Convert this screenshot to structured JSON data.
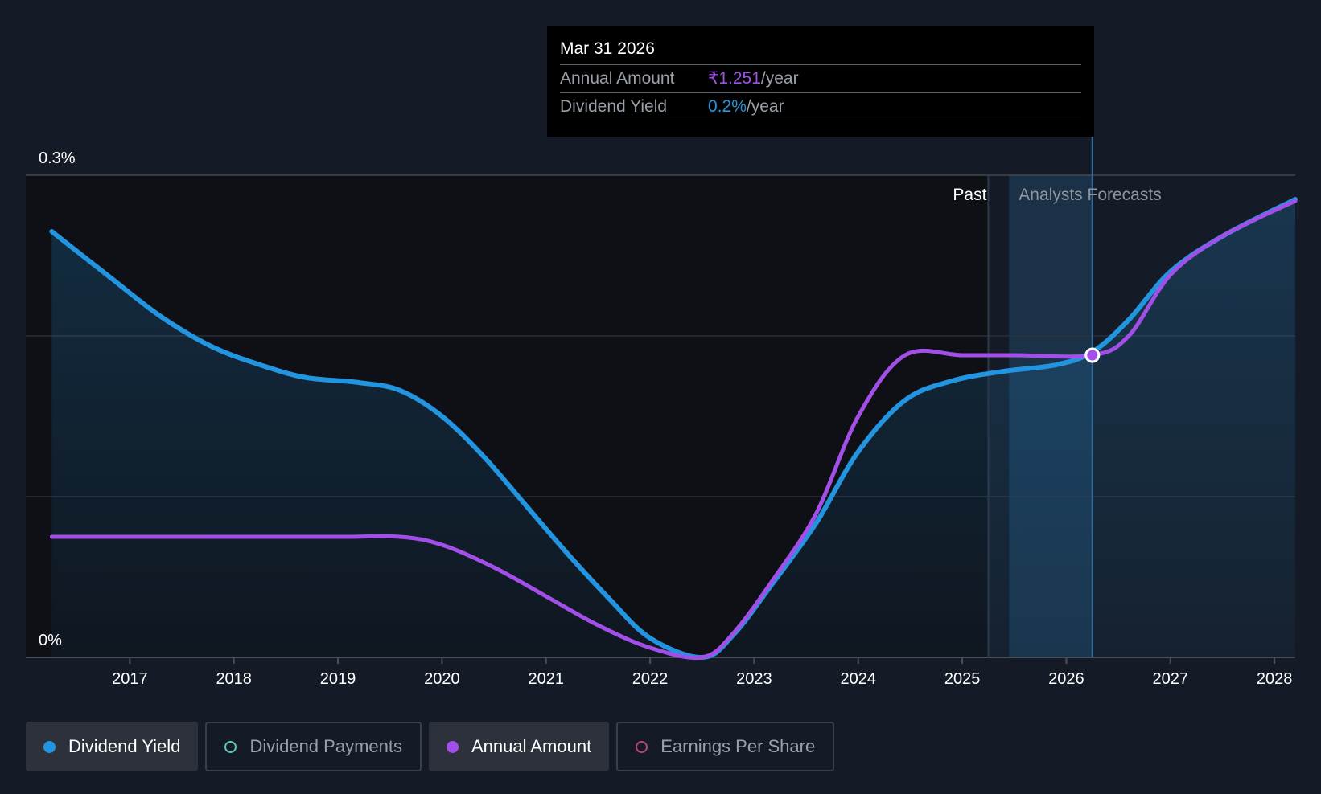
{
  "colors": {
    "background": "#151b26",
    "past_bg": "#0e1016",
    "dividend_yield": "#2394df",
    "annual_amount": "#a24fe8",
    "dividend_payments": "#5ac8bd",
    "earnings_per_share": "#b8437e",
    "grid": "#3a3f48"
  },
  "tooltip": {
    "date": "Mar 31 2026",
    "rows": [
      {
        "label": "Annual Amount",
        "value": "₹1.251",
        "unit": "/year"
      },
      {
        "label": "Dividend Yield",
        "value": "0.2%",
        "unit": "/year"
      }
    ]
  },
  "legend": [
    {
      "label": "Dividend Yield",
      "active": true
    },
    {
      "label": "Dividend Payments",
      "active": false
    },
    {
      "label": "Annual Amount",
      "active": true
    },
    {
      "label": "Earnings Per Share",
      "active": false
    }
  ],
  "chart_data": {
    "type": "area",
    "title": "",
    "xlabel": "",
    "ylabel": "",
    "ylim": [
      0,
      0.3
    ],
    "xlim": [
      2016.0,
      2028.2
    ],
    "y_tick_labels": [
      {
        "value": 0.3,
        "label": "0.3%"
      },
      {
        "value": 0,
        "label": "0%"
      }
    ],
    "x_ticks": [
      2017,
      2018,
      2019,
      2020,
      2021,
      2022,
      2023,
      2024,
      2025,
      2026,
      2027,
      2028
    ],
    "regions": {
      "past_label": "Past",
      "forecast_label": "Analysts Forecasts",
      "past_end": 2025.25,
      "forecast_band": [
        2025.45,
        2026.25
      ]
    },
    "highlight": {
      "x": 2026.25,
      "y": 0.188
    },
    "series": [
      {
        "name": "Dividend Yield",
        "unit": "%",
        "points": [
          [
            2016.25,
            0.265
          ],
          [
            2016.8,
            0.237
          ],
          [
            2017.3,
            0.212
          ],
          [
            2017.8,
            0.193
          ],
          [
            2018.3,
            0.181
          ],
          [
            2018.7,
            0.174
          ],
          [
            2019.2,
            0.171
          ],
          [
            2019.6,
            0.166
          ],
          [
            2020.0,
            0.15
          ],
          [
            2020.4,
            0.125
          ],
          [
            2020.8,
            0.095
          ],
          [
            2021.2,
            0.065
          ],
          [
            2021.6,
            0.037
          ],
          [
            2022.0,
            0.012
          ],
          [
            2022.5,
            0.0
          ],
          [
            2022.8,
            0.014
          ],
          [
            2023.2,
            0.048
          ],
          [
            2023.6,
            0.084
          ],
          [
            2024.0,
            0.128
          ],
          [
            2024.45,
            0.16
          ],
          [
            2024.9,
            0.172
          ],
          [
            2025.4,
            0.178
          ],
          [
            2025.9,
            0.182
          ],
          [
            2026.25,
            0.19
          ],
          [
            2026.6,
            0.21
          ],
          [
            2027.0,
            0.24
          ],
          [
            2027.5,
            0.262
          ],
          [
            2028.2,
            0.285
          ]
        ]
      },
      {
        "name": "Annual Amount",
        "unit": "₹",
        "points": [
          [
            2016.25,
            0.075
          ],
          [
            2017.0,
            0.075
          ],
          [
            2018.0,
            0.075
          ],
          [
            2019.0,
            0.075
          ],
          [
            2019.6,
            0.075
          ],
          [
            2020.0,
            0.07
          ],
          [
            2020.5,
            0.056
          ],
          [
            2021.0,
            0.038
          ],
          [
            2021.5,
            0.02
          ],
          [
            2022.0,
            0.006
          ],
          [
            2022.5,
            0.0
          ],
          [
            2022.8,
            0.015
          ],
          [
            2023.2,
            0.05
          ],
          [
            2023.6,
            0.09
          ],
          [
            2024.0,
            0.15
          ],
          [
            2024.45,
            0.188
          ],
          [
            2025.0,
            0.188
          ],
          [
            2025.5,
            0.188
          ],
          [
            2026.25,
            0.188
          ],
          [
            2026.6,
            0.2
          ],
          [
            2027.0,
            0.238
          ],
          [
            2027.5,
            0.262
          ],
          [
            2028.2,
            0.284
          ]
        ]
      }
    ]
  }
}
